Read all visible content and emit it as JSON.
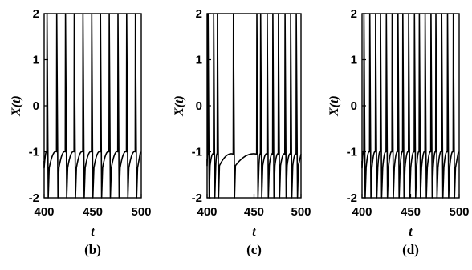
{
  "chart_data": [
    {
      "type": "line",
      "panel_label": "(b)",
      "xlabel": "t",
      "ylabel": "X(t)",
      "xlim": [
        400,
        500
      ],
      "ylim": [
        -2,
        2
      ],
      "xticks": [
        "400",
        "450",
        "500"
      ],
      "yticks": [
        "2",
        "1",
        "0",
        "-1",
        "-2"
      ],
      "grid": false,
      "series": [
        {
          "spike_times": [
            403,
            413,
            422,
            431,
            440,
            449,
            458,
            467,
            476,
            485,
            494
          ],
          "spike_peak": 2.0,
          "reset_level": -2.0,
          "baseline_range": [
            -1.35,
            -1.0
          ]
        }
      ]
    },
    {
      "type": "line",
      "panel_label": "(c)",
      "xlabel": "t",
      "ylabel": "X(t)",
      "xlim": [
        400,
        500
      ],
      "ylim": [
        -2,
        2
      ],
      "xticks": [
        "400",
        "450",
        "500"
      ],
      "yticks": [
        "2",
        "1",
        "0",
        "-1",
        "-2"
      ],
      "grid": false,
      "series": [
        {
          "spike_times": [
            401,
            407,
            411,
            428,
            453,
            457,
            464,
            470,
            476,
            483,
            489,
            495
          ],
          "spike_peak": 2.0,
          "reset_level": -2.0,
          "baseline_range": [
            -1.3,
            -1.05
          ]
        }
      ]
    },
    {
      "type": "line",
      "panel_label": "(d)",
      "xlabel": "t",
      "ylabel": "X(t)",
      "xlim": [
        400,
        500
      ],
      "ylim": [
        -2,
        2
      ],
      "xticks": [
        "400",
        "450",
        "500"
      ],
      "yticks": [
        "2",
        "1",
        "0",
        "-1",
        "-2"
      ],
      "grid": false,
      "series": [
        {
          "spike_times": [
            402,
            408,
            414,
            419,
            425,
            431,
            437,
            442,
            448,
            454,
            459,
            465,
            471,
            476,
            482,
            488,
            494
          ],
          "spike_peak": 2.0,
          "reset_level": -2.0,
          "baseline_range": [
            -1.35,
            -1.0
          ]
        }
      ]
    }
  ]
}
